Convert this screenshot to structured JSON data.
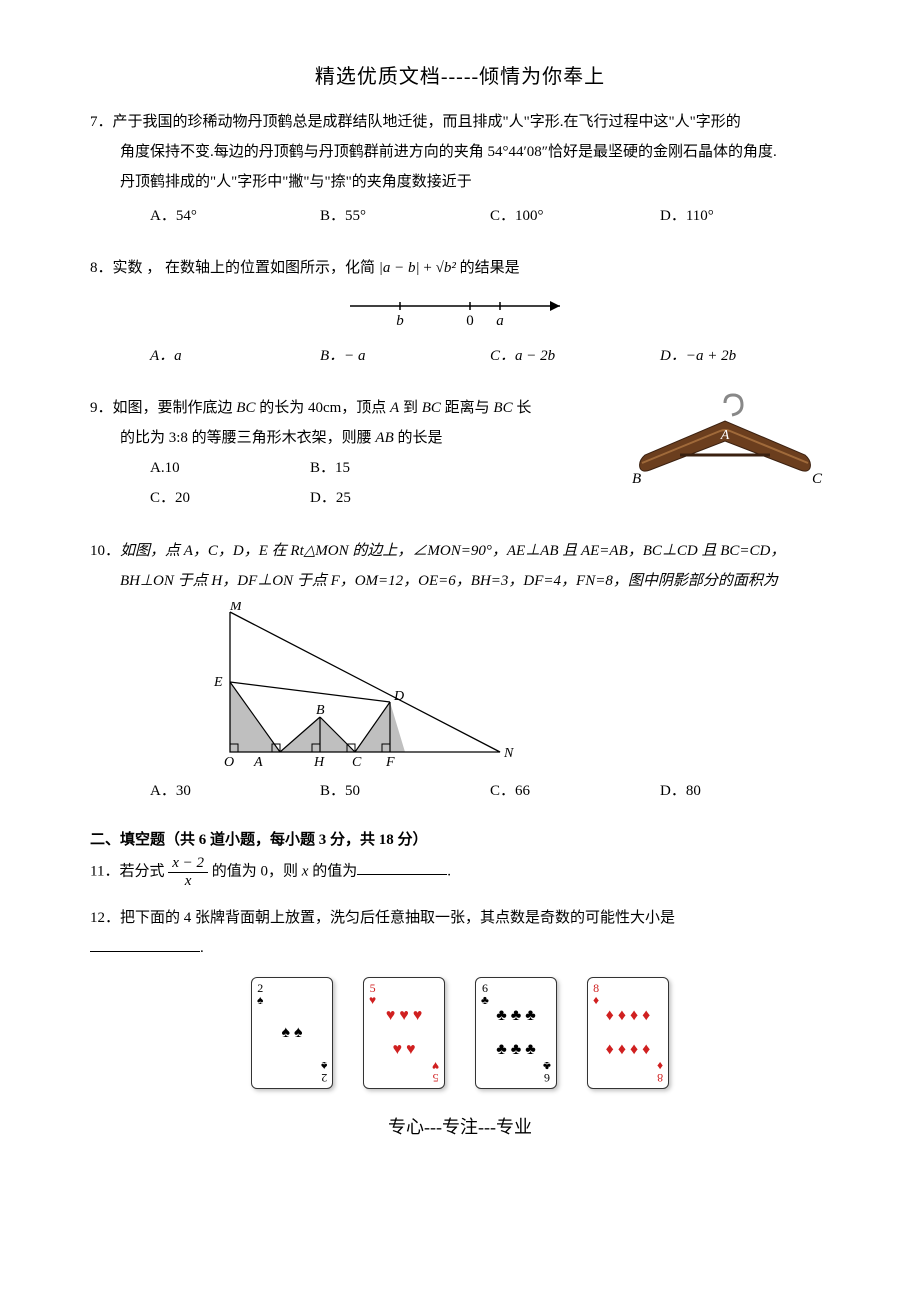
{
  "header": "精选优质文档-----倾情为你奉上",
  "footer": "专心---专注---专业",
  "q7": {
    "num": "7．",
    "line1": "产于我国的珍稀动物丹顶鹤总是成群结队地迁徙，而且排成\"人\"字形.在飞行过程中这\"人\"字形的",
    "line2": "角度保持不变.每边的丹顶鹤与丹顶鹤群前进方向的夹角 54°44′08″恰好是最坚硬的金刚石晶体的角度.",
    "line3": "丹顶鹤排成的\"人\"字形中\"撇\"与\"捺\"的夹角度数接近于",
    "opts": {
      "A": "A．54°",
      "B": "B．55°",
      "C": "C．100°",
      "D": "D．110°"
    }
  },
  "q8": {
    "num": "8．",
    "text_pre": "实数 ， 在数轴上的位置如图所示，化简 ",
    "text_post": " 的结果是",
    "expr_abs": "|a − b|",
    "expr_sqrt": "√b²",
    "numberline": {
      "b_label": "b",
      "zero_label": "0",
      "a_label": "a"
    },
    "opts": {
      "A": "A．a",
      "B": "B．− a",
      "C": "C．a − 2b",
      "D": "D．−a + 2b"
    }
  },
  "q9": {
    "num": "9．",
    "line1_pre": "如图，要制作底边 ",
    "line1_bc": "BC",
    "line1_mid": " 的长为 40cm，顶点 ",
    "line1_a": "A",
    "line1_mid2": " 到 ",
    "line1_bc2": "BC",
    "line1_mid3": " 距离与 ",
    "line1_bc3": "BC",
    "line1_end": " 长",
    "line2_pre": "的比为 3:8 的等腰三角形木衣架，则腰 ",
    "line2_ab": "AB",
    "line2_end": " 的长是",
    "opts": {
      "A": "A.10",
      "B": "B．15",
      "C": "C．20",
      "D": "D．25"
    },
    "hanger_labels": {
      "A": "A",
      "B": "B",
      "C": "C"
    }
  },
  "q10": {
    "num": "10．",
    "line1": "如图，点 A，C，D，E 在 Rt△MON 的边上，∠MON=90°，AE⊥AB 且 AE=AB，BC⊥CD 且 BC=CD，",
    "line2": "BH⊥ON 于点 H，DF⊥ON 于点 F，OM=12，OE=6，BH=3，DF=4，FN=8，图中阴影部分的面积为",
    "labels": {
      "M": "M",
      "E": "E",
      "D": "D",
      "B": "B",
      "O": "O",
      "A": "A",
      "H": "H",
      "C": "C",
      "F": "F",
      "N": "N"
    },
    "opts": {
      "A": "A．30",
      "B": "B．50",
      "C": "C．66",
      "D": "D．80"
    }
  },
  "section2": "二、填空题（共 6 道小题，每小题 3 分，共 18 分）",
  "q11": {
    "num": "11．",
    "pre": "若分式 ",
    "frac_num": "x − 2",
    "frac_den": "x",
    "mid": " 的值为 0，则 ",
    "xvar": "x",
    "post": " 的值为",
    "period": "."
  },
  "q12": {
    "num": "12．",
    "text": "把下面的 4 张牌背面朝上放置，洗匀后任意抽取一张，其点数是奇数的可能性大小是",
    "period": ".",
    "cards": [
      {
        "rank": "2",
        "suit": "spade",
        "color": "#000000",
        "pips": 2,
        "glyph": "♠"
      },
      {
        "rank": "5",
        "suit": "heart",
        "color": "#d02020",
        "pips": 5,
        "glyph": "♥"
      },
      {
        "rank": "6",
        "suit": "club",
        "color": "#000000",
        "pips": 6,
        "glyph": "♣"
      },
      {
        "rank": "8",
        "suit": "diamond",
        "color": "#d02020",
        "pips": 8,
        "glyph": "♦"
      }
    ]
  },
  "colors": {
    "text": "#000000",
    "bg": "#ffffff",
    "hanger_wood": "#6b3e1e",
    "hanger_wood_light": "#a06a3a",
    "hanger_hook": "#888888",
    "shade": "#bfbfbf",
    "card_shadow": "rgba(0,0,0,0.25)"
  },
  "fontsizes": {
    "header": 20,
    "body": 15,
    "footer": 18
  }
}
